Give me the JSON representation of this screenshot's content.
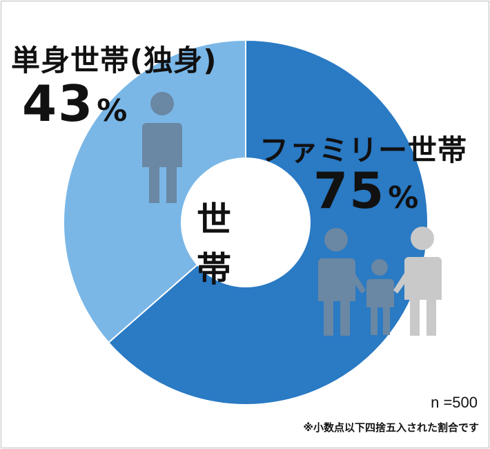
{
  "chart_data": {
    "type": "pie",
    "center_label": "世帯",
    "slices": [
      {
        "label": "単身世帯(独身)",
        "value": 43,
        "value_text": "43",
        "unit": "%",
        "color": "#7ab7e7"
      },
      {
        "label": "ファミリー世帯",
        "value": 75,
        "value_text": "75",
        "unit": "%",
        "color": "#2a7ac4"
      }
    ],
    "icons": [
      "person-icon",
      "family-icon"
    ],
    "colors": {
      "icon_fill": "#6a87a3",
      "parent_right_fill": "#c9c9c9",
      "center_circle": "#ffffff",
      "divider": "#ffffff"
    }
  },
  "footer": {
    "sample_size": "n =500",
    "note": "※小数点以下四捨五入された割合です"
  }
}
